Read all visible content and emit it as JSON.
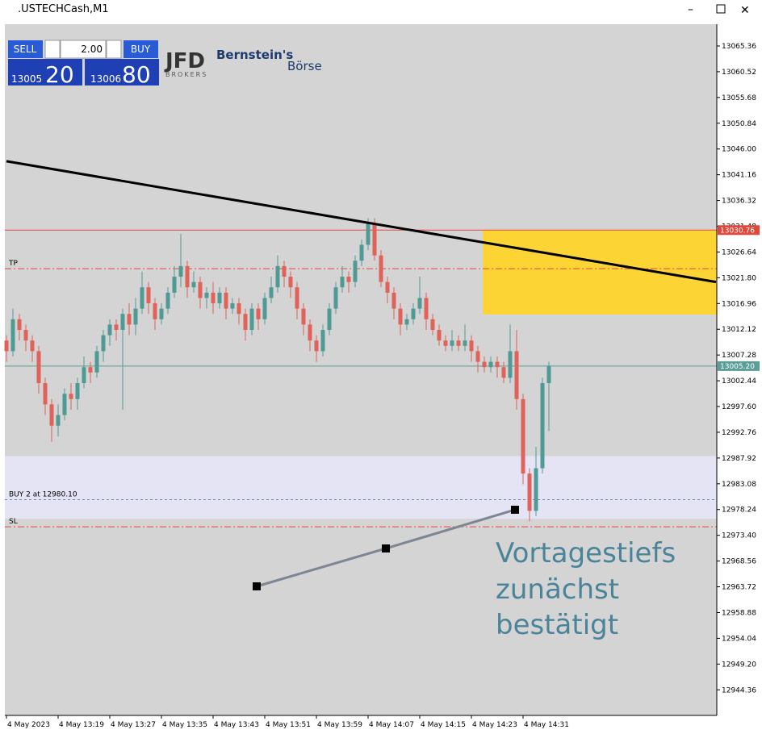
{
  "window": {
    "title": ".USTECHCash,M1"
  },
  "trade_panel": {
    "sell": "SELL",
    "buy": "BUY",
    "lot": "2.00",
    "bid_main": "13005",
    "bid_big": "20",
    "ask_main": "13006",
    "ask_big": "80"
  },
  "logos": {
    "jfd": "JFD",
    "jfd_sub": "BROKERS",
    "bernstein": "Bernstein's",
    "boerse": "Börse"
  },
  "chart_data": {
    "type": "candlestick",
    "bull_color": "#4f9a94",
    "bear_color": "#e0625a",
    "ylim": [
      12939.55,
      13069.45
    ],
    "yticks": [
      13065.36,
      13060.52,
      13055.68,
      13050.84,
      {
        "value": 13046,
        "label": "13046.00"
      },
      13041.16,
      13036.32,
      13031.48,
      13026.64,
      {
        "value": 13021.8,
        "label": "13021.80"
      },
      13016.96,
      13012.12,
      13007.28,
      13002.44,
      {
        "value": 12997.6,
        "label": "12997.60"
      },
      12992.76,
      12987.92,
      12983.08,
      12978.24,
      {
        "value": 12973.4,
        "label": "12973.40"
      },
      12968.56,
      12963.72,
      12958.88,
      12954.04,
      {
        "value": 12949.2,
        "label": "12949.20"
      },
      12944.36
    ],
    "xticks": [
      {
        "value": 0,
        "label": "4 May 2023"
      },
      {
        "value": 8,
        "label": "4 May 13:19"
      },
      {
        "value": 16,
        "label": "4 May 13:27"
      },
      {
        "value": 24,
        "label": "4 May 13:35"
      },
      {
        "value": 32,
        "label": "4 May 13:43"
      },
      {
        "value": 40,
        "label": "4 May 13:51"
      },
      {
        "value": 48,
        "label": "4 May 13:59"
      },
      {
        "value": 56,
        "label": "4 May 14:07"
      },
      {
        "value": 64,
        "label": "4 May 14:15"
      },
      {
        "value": 72,
        "label": "4 May 14:23"
      },
      {
        "value": 80,
        "label": "4 May 14:31"
      }
    ],
    "ohlc": [
      [
        13010,
        13011,
        13006,
        13008
      ],
      [
        13008,
        13016,
        13007,
        13014
      ],
      [
        13014,
        13015,
        13010,
        13012
      ],
      [
        13012,
        13013,
        13008,
        13010
      ],
      [
        13010,
        13011,
        13006,
        13008
      ],
      [
        13008,
        13009,
        13000,
        13002
      ],
      [
        13002,
        13003,
        12996,
        12998
      ],
      [
        12998,
        12999,
        12991,
        12994
      ],
      [
        12994,
        12998,
        12992,
        12996
      ],
      [
        12996,
        13001,
        12995,
        13000
      ],
      [
        13000,
        13002,
        12997,
        12999
      ],
      [
        12999,
        13003,
        12997,
        13002
      ],
      [
        13002,
        13007,
        13001,
        13005
      ],
      [
        13005,
        13006,
        13002,
        13004
      ],
      [
        13004,
        13009,
        13003,
        13008
      ],
      [
        13008,
        13012,
        13006,
        13011
      ],
      [
        13011,
        13014,
        13009,
        13013
      ],
      [
        13013,
        13014,
        13010,
        13012
      ],
      [
        13012,
        13016,
        12997,
        13015
      ],
      [
        13015,
        13017,
        13011,
        13013
      ],
      [
        13013,
        13018,
        13011,
        13016
      ],
      [
        13016,
        13023,
        13015,
        13020
      ],
      [
        13020,
        13021,
        13015,
        13017
      ],
      [
        13017,
        13018,
        13012,
        13014
      ],
      [
        13014,
        13017,
        13013,
        13016
      ],
      [
        13016,
        13020,
        13015,
        13019
      ],
      [
        13019,
        13024,
        13018,
        13022
      ],
      [
        13022,
        13030,
        13020,
        13024
      ],
      [
        13024,
        13025,
        13018,
        13020
      ],
      [
        13020,
        13023,
        13019,
        13021
      ],
      [
        13021,
        13022,
        13016,
        13018
      ],
      [
        13018,
        13020,
        13016,
        13019
      ],
      [
        13019,
        13021,
        13015,
        13017
      ],
      [
        13017,
        13020,
        13016,
        13019
      ],
      [
        13019,
        13020,
        13014,
        13016
      ],
      [
        13016,
        13018,
        13015,
        13017
      ],
      [
        13017,
        13018,
        13013,
        13015
      ],
      [
        13015,
        13016,
        13010,
        13012
      ],
      [
        13012,
        13017,
        13011,
        13016
      ],
      [
        13016,
        13017,
        13012,
        13014
      ],
      [
        13014,
        13019,
        13013,
        13018
      ],
      [
        13018,
        13022,
        13017,
        13020
      ],
      [
        13020,
        13026,
        13019,
        13024
      ],
      [
        13024,
        13025,
        13020,
        13022
      ],
      [
        13022,
        13023,
        13018,
        13020
      ],
      [
        13020,
        13021,
        13014,
        13016
      ],
      [
        13016,
        13017,
        13011,
        13013
      ],
      [
        13013,
        13014,
        13008,
        13010
      ],
      [
        13010,
        13011,
        13006,
        13008
      ],
      [
        13008,
        13013,
        13007,
        13012
      ],
      [
        13012,
        13017,
        13011,
        13016
      ],
      [
        13016,
        13021,
        13015,
        13020
      ],
      [
        13020,
        13024,
        13019,
        13022
      ],
      [
        13022,
        13023,
        13019,
        13021
      ],
      [
        13021,
        13026,
        13020,
        13025
      ],
      [
        13025,
        13029,
        13024,
        13028
      ],
      [
        13028,
        13033,
        13027,
        13032
      ],
      [
        13032,
        13033,
        13025,
        13026
      ],
      [
        13026,
        13027,
        13020,
        13021
      ],
      [
        13021,
        13022,
        13017,
        13019
      ],
      [
        13019,
        13020,
        13014,
        13016
      ],
      [
        13016,
        13017,
        13011,
        13013
      ],
      [
        13013,
        13015,
        13012,
        13014
      ],
      [
        13014,
        13017,
        13013,
        13016
      ],
      [
        13016,
        13022,
        13015,
        13018
      ],
      [
        13018,
        13019,
        13012,
        13014
      ],
      [
        13014,
        13015,
        13011,
        13012
      ],
      [
        13012,
        13013,
        13009,
        13010
      ],
      [
        13010,
        13011,
        13008,
        13009
      ],
      [
        13009,
        13012,
        13008,
        13010
      ],
      [
        13010,
        13011,
        13008,
        13009
      ],
      [
        13009,
        13013,
        13008,
        13010
      ],
      [
        13010,
        13011,
        13006,
        13008
      ],
      [
        13008,
        13009,
        13004,
        13006
      ],
      [
        13006,
        13007,
        13004,
        13005
      ],
      [
        13005,
        13007,
        13004,
        13006
      ],
      [
        13006,
        13007,
        13003,
        13005
      ],
      [
        13005,
        13006,
        13002,
        13003
      ],
      [
        13003,
        13013,
        13002,
        13008
      ],
      [
        13008,
        13012,
        12997,
        12999
      ],
      [
        12999,
        13000,
        12983,
        12985
      ],
      [
        12985,
        12986,
        12976,
        12978
      ],
      [
        12978,
        12990,
        12977,
        12986
      ],
      [
        12986,
        13003,
        12985,
        13002
      ],
      [
        13002,
        13006,
        12993,
        13005.2
      ]
    ],
    "resistance": {
      "value": 13030.76,
      "color": "#e0483c"
    },
    "current_price": {
      "value": 13005.2,
      "label": "13005.20",
      "color": "#5a9e97"
    },
    "levels": [
      {
        "label": "TP",
        "value": 13023.5,
        "color": "#e0483c"
      },
      {
        "label": "BUY 2 at 12980.10",
        "value": 12980.1,
        "color": "#6a8cb0"
      },
      {
        "label": "SL",
        "value": 12975,
        "color": "#e0483c"
      }
    ],
    "zone": {
      "top": 12988.3,
      "bottom": 12976.5,
      "color": "#e4e4f4"
    },
    "box": {
      "top": 13030.76,
      "bottom": 13014.9,
      "color": "#fcd535"
    },
    "trendline": {
      "start": 13043.7,
      "end": 13021,
      "color": "#000000"
    },
    "annotation": [
      "Vortagestiefs",
      "zunächst",
      "bestätigt"
    ]
  }
}
